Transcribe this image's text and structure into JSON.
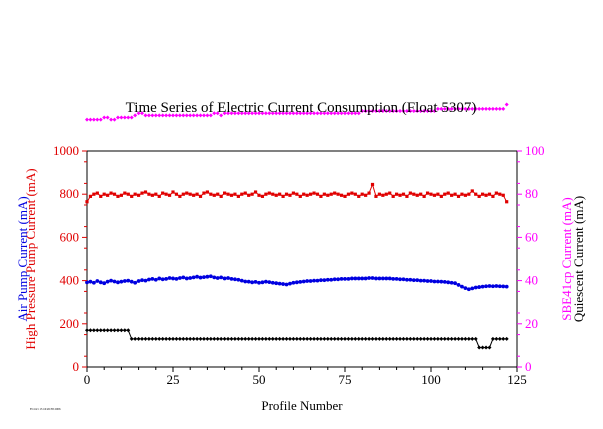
{
  "colors": {
    "red": "#e00000",
    "blue": "#0000e0",
    "black": "#000000",
    "magenta": "#ff00ff"
  },
  "chart_data": {
    "type": "scatter",
    "title": "Time Series of Electric Current Consumption (Float 5307)",
    "xlabel": "Profile Number",
    "ylabel_left": [
      "High Pressure Pump Current (mA)",
      "Air Pump Current (mA)"
    ],
    "ylabel_right": [
      "SBE41cp Current (mA)",
      "Quiescent Current (mA)"
    ],
    "xlim": [
      0,
      125
    ],
    "ylim_left": [
      0,
      1000
    ],
    "ylim_right": [
      0,
      100
    ],
    "x_ticks": [
      "0",
      "25",
      "50",
      "75",
      "100",
      "125"
    ],
    "y_left_ticks": [
      "0",
      "200",
      "400",
      "600",
      "800",
      "1000"
    ],
    "y_right_ticks": [
      "0",
      "20",
      "40",
      "60",
      "80",
      "100"
    ],
    "footer_note": "Fri Oct 13 16:26:38 2006",
    "series": [
      {
        "name": "High Pressure Pump Current (mA)",
        "axis": "left",
        "color": "#e00000",
        "marker": "square",
        "x": [
          0,
          1,
          2,
          3,
          4,
          5,
          6,
          7,
          8,
          9,
          10,
          11,
          12,
          13,
          14,
          15,
          16,
          17,
          18,
          19,
          20,
          21,
          22,
          23,
          24,
          25,
          26,
          27,
          28,
          29,
          30,
          31,
          32,
          33,
          34,
          35,
          36,
          37,
          38,
          39,
          40,
          41,
          42,
          43,
          44,
          45,
          46,
          47,
          48,
          49,
          50,
          51,
          52,
          53,
          54,
          55,
          56,
          57,
          58,
          59,
          60,
          61,
          62,
          63,
          64,
          65,
          66,
          67,
          68,
          69,
          70,
          71,
          72,
          73,
          74,
          75,
          76,
          77,
          78,
          79,
          80,
          81,
          82,
          83,
          84,
          85,
          86,
          87,
          88,
          89,
          90,
          91,
          92,
          93,
          94,
          95,
          96,
          97,
          98,
          99,
          100,
          101,
          102,
          103,
          104,
          105,
          106,
          107,
          108,
          109,
          110,
          111,
          112,
          113,
          114,
          115,
          116,
          117,
          118,
          119,
          120,
          121,
          122
        ],
        "y": [
          765,
          790,
          800,
          805,
          790,
          800,
          795,
          805,
          800,
          790,
          795,
          805,
          800,
          790,
          800,
          795,
          805,
          810,
          800,
          795,
          800,
          790,
          805,
          800,
          795,
          810,
          800,
          790,
          800,
          805,
          800,
          795,
          800,
          790,
          805,
          810,
          800,
          795,
          800,
          790,
          805,
          800,
          795,
          800,
          790,
          800,
          805,
          795,
          800,
          810,
          795,
          790,
          800,
          805,
          800,
          795,
          800,
          790,
          800,
          795,
          805,
          800,
          790,
          800,
          795,
          800,
          805,
          800,
          790,
          800,
          795,
          800,
          805,
          800,
          795,
          790,
          800,
          805,
          800,
          790,
          800,
          795,
          805,
          845,
          790,
          800,
          795,
          800,
          805,
          790,
          800,
          795,
          800,
          790,
          805,
          800,
          795,
          800,
          790,
          805,
          800,
          795,
          800,
          790,
          800,
          805,
          795,
          800,
          790,
          800,
          795,
          800,
          815,
          800,
          790,
          800,
          795,
          800,
          790,
          805,
          800,
          795,
          765
        ]
      },
      {
        "name": "Air Pump Current (mA)",
        "axis": "left",
        "color": "#0000e0",
        "marker": "circle",
        "x": [
          0,
          1,
          2,
          3,
          4,
          5,
          6,
          7,
          8,
          9,
          10,
          11,
          12,
          13,
          14,
          15,
          16,
          17,
          18,
          19,
          20,
          21,
          22,
          23,
          24,
          25,
          26,
          27,
          28,
          29,
          30,
          31,
          32,
          33,
          34,
          35,
          36,
          37,
          38,
          39,
          40,
          41,
          42,
          43,
          44,
          45,
          46,
          47,
          48,
          49,
          50,
          51,
          52,
          53,
          54,
          55,
          56,
          57,
          58,
          59,
          60,
          61,
          62,
          63,
          64,
          65,
          66,
          67,
          68,
          69,
          70,
          71,
          72,
          73,
          74,
          75,
          76,
          77,
          78,
          79,
          80,
          81,
          82,
          83,
          84,
          85,
          86,
          87,
          88,
          89,
          90,
          91,
          92,
          93,
          94,
          95,
          96,
          97,
          98,
          99,
          100,
          101,
          102,
          103,
          104,
          105,
          106,
          107,
          108,
          109,
          110,
          111,
          112,
          113,
          114,
          115,
          116,
          117,
          118,
          119,
          120,
          121,
          122
        ],
        "y": [
          392,
          395,
          390,
          398,
          392,
          388,
          395,
          400,
          396,
          392,
          395,
          398,
          400,
          395,
          390,
          398,
          402,
          400,
          405,
          408,
          404,
          410,
          406,
          408,
          412,
          410,
          408,
          412,
          415,
          410,
          412,
          415,
          418,
          414,
          416,
          418,
          420,
          415,
          412,
          415,
          410,
          412,
          408,
          406,
          404,
          400,
          396,
          395,
          392,
          394,
          390,
          392,
          395,
          393,
          390,
          388,
          386,
          384,
          382,
          386,
          390,
          392,
          394,
          396,
          398,
          398,
          400,
          400,
          402,
          402,
          404,
          404,
          406,
          406,
          408,
          408,
          408,
          410,
          410,
          410,
          410,
          410,
          412,
          412,
          410,
          410,
          410,
          410,
          410,
          408,
          408,
          406,
          406,
          404,
          404,
          402,
          402,
          400,
          400,
          398,
          398,
          396,
          396,
          395,
          394,
          392,
          390,
          388,
          380,
          372,
          365,
          360,
          364,
          368,
          370,
          372,
          374,
          375,
          374,
          375,
          374,
          373,
          372
        ]
      },
      {
        "name": "SBE41cp Current (mA)",
        "axis": "right",
        "color": "#ff00ff",
        "marker": "diamond",
        "x": [
          0,
          1,
          2,
          3,
          4,
          5,
          6,
          7,
          8,
          9,
          10,
          11,
          12,
          13,
          14,
          15,
          16,
          17,
          18,
          19,
          20,
          21,
          22,
          23,
          24,
          25,
          26,
          27,
          28,
          29,
          30,
          31,
          32,
          33,
          34,
          35,
          36,
          37,
          38,
          39,
          40,
          41,
          42,
          43,
          44,
          45,
          46,
          47,
          48,
          49,
          50,
          51,
          52,
          53,
          54,
          55,
          56,
          57,
          58,
          59,
          60,
          61,
          62,
          63,
          64,
          65,
          66,
          67,
          68,
          69,
          70,
          71,
          72,
          73,
          74,
          75,
          76,
          77,
          78,
          79,
          80,
          81,
          82,
          83,
          84,
          85,
          86,
          87,
          88,
          89,
          90,
          91,
          92,
          93,
          94,
          95,
          96,
          97,
          98,
          99,
          100,
          101,
          102,
          103,
          104,
          105,
          106,
          107,
          108,
          109,
          110,
          111,
          112,
          113,
          114,
          115,
          116,
          117,
          118,
          119,
          120,
          121,
          122
        ],
        "y": [
          114.5,
          114.5,
          114.5,
          114.5,
          114.5,
          115.5,
          115.5,
          114.5,
          114.5,
          115.5,
          115.5,
          115.5,
          115.5,
          115.5,
          116.5,
          117.5,
          117.5,
          116.5,
          116.5,
          116.5,
          116.5,
          116.5,
          116.5,
          116.5,
          116.5,
          116.5,
          116.5,
          116.5,
          116.5,
          116.5,
          116.5,
          116.5,
          116.5,
          116.5,
          116.5,
          116.5,
          116.5,
          117.5,
          117.5,
          116.5,
          117.5,
          117.5,
          117.5,
          117.5,
          117.5,
          117.5,
          117.5,
          117.5,
          117.5,
          117.5,
          117.5,
          117.5,
          117.5,
          117.5,
          117.5,
          117.5,
          117.5,
          117.5,
          117.5,
          117.5,
          117.5,
          117.5,
          117.5,
          117.5,
          117.5,
          117.5,
          117.5,
          117.5,
          117.5,
          117.5,
          117.5,
          117.5,
          117.5,
          117.5,
          117.5,
          117.5,
          117.5,
          117.5,
          117.5,
          117.5,
          118.5,
          118.5,
          118.5,
          118.5,
          118.5,
          118.5,
          118.5,
          118.5,
          118.5,
          118.5,
          118.5,
          118.5,
          118.5,
          118.5,
          118.5,
          118.5,
          118.5,
          118.5,
          118.5,
          118.5,
          118.5,
          118.5,
          119.5,
          119.5,
          119.5,
          119.5,
          119.5,
          119.5,
          119.5,
          119.5,
          119.5,
          119.5,
          119.5,
          119.5,
          119.5,
          119.5,
          119.5,
          119.5,
          119.5,
          119.5,
          119.5,
          119.5,
          121.5
        ]
      },
      {
        "name": "Quiescent Current (mA)",
        "axis": "right",
        "color": "#000000",
        "marker": "diamond",
        "x": [
          0,
          1,
          2,
          3,
          4,
          5,
          6,
          7,
          8,
          9,
          10,
          11,
          12,
          13,
          14,
          15,
          16,
          17,
          18,
          19,
          20,
          21,
          22,
          23,
          24,
          25,
          26,
          27,
          28,
          29,
          30,
          31,
          32,
          33,
          34,
          35,
          36,
          37,
          38,
          39,
          40,
          41,
          42,
          43,
          44,
          45,
          46,
          47,
          48,
          49,
          50,
          51,
          52,
          53,
          54,
          55,
          56,
          57,
          58,
          59,
          60,
          61,
          62,
          63,
          64,
          65,
          66,
          67,
          68,
          69,
          70,
          71,
          72,
          73,
          74,
          75,
          76,
          77,
          78,
          79,
          80,
          81,
          82,
          83,
          84,
          85,
          86,
          87,
          88,
          89,
          90,
          91,
          92,
          93,
          94,
          95,
          96,
          97,
          98,
          99,
          100,
          101,
          102,
          103,
          104,
          105,
          106,
          107,
          108,
          109,
          110,
          111,
          112,
          113,
          114,
          115,
          116,
          117,
          118,
          119,
          120,
          121,
          122
        ],
        "y": [
          17,
          17,
          17,
          17,
          17,
          17,
          17,
          17,
          17,
          17,
          17,
          17,
          17,
          13,
          13,
          13,
          13,
          13,
          13,
          13,
          13,
          13,
          13,
          13,
          13,
          13,
          13,
          13,
          13,
          13,
          13,
          13,
          13,
          13,
          13,
          13,
          13,
          13,
          13,
          13,
          13,
          13,
          13,
          13,
          13,
          13,
          13,
          13,
          13,
          13,
          13,
          13,
          13,
          13,
          13,
          13,
          13,
          13,
          13,
          13,
          13,
          13,
          13,
          13,
          13,
          13,
          13,
          13,
          13,
          13,
          13,
          13,
          13,
          13,
          13,
          13,
          13,
          13,
          13,
          13,
          13,
          13,
          13,
          13,
          13,
          13,
          13,
          13,
          13,
          13,
          13,
          13,
          13,
          13,
          13,
          13,
          13,
          13,
          13,
          13,
          13,
          13,
          13,
          13,
          13,
          13,
          13,
          13,
          13,
          13,
          13,
          13,
          13,
          13,
          9,
          9,
          9,
          9,
          13,
          13,
          13,
          13,
          13
        ]
      }
    ]
  }
}
